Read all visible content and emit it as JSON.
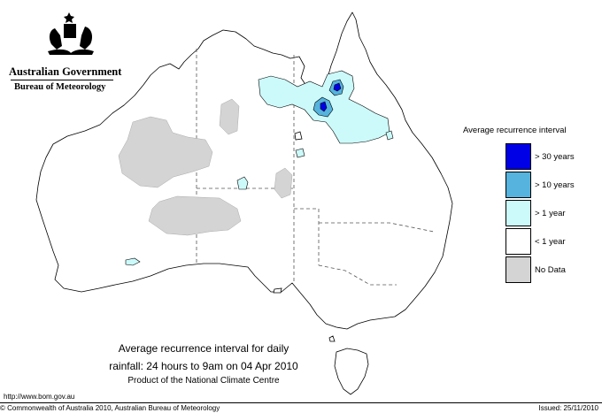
{
  "header": {
    "government": "Australian Government",
    "bureau": "Bureau of Meteorology"
  },
  "legend": {
    "title": "Average recurrence interval",
    "items": [
      {
        "label": "> 30 years",
        "color": "#0000e6"
      },
      {
        "label": "> 10 years",
        "color": "#55b3dd"
      },
      {
        "label": "> 1 year",
        "color": "#ccfafa"
      },
      {
        "label": "< 1 year",
        "color": "#ffffff"
      },
      {
        "label": "No Data",
        "color": "#d4d4d4"
      }
    ]
  },
  "caption": {
    "line1": "Average recurrence interval for daily",
    "line2": "rainfall: 24 hours to 9am on 04 Apr 2010",
    "line3": "Product of the National Climate Centre"
  },
  "footer": {
    "url": "http://www.bom.gov.au",
    "copyright": "© Commonwealth of Australia 2010, Australian Bureau of Meteorology",
    "issued": "Issued: 25/11/2010"
  }
}
